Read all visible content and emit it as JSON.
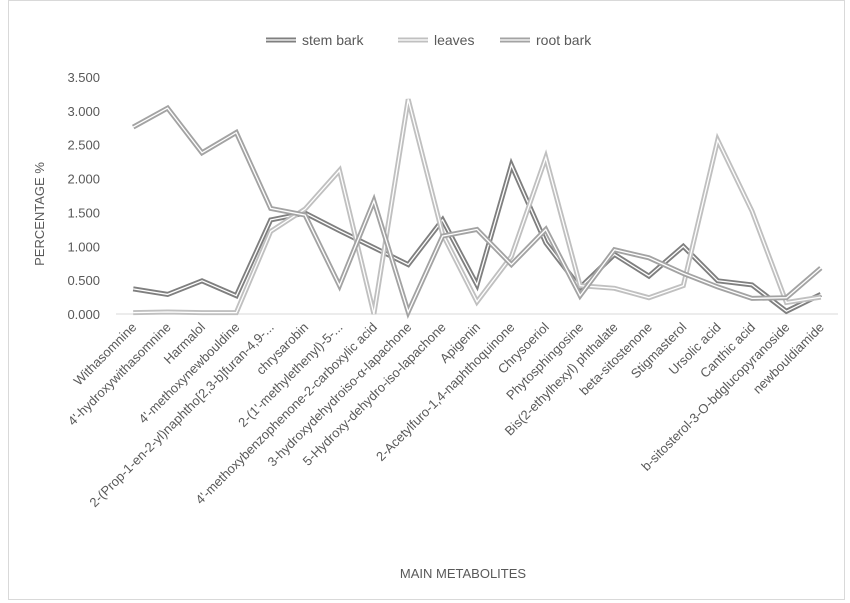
{
  "chart_data": {
    "type": "line",
    "xlabel": "MAIN  METABOLITES",
    "ylabel": "PERCENTAGE %",
    "ylim": [
      0,
      3.5
    ],
    "ytick_step": 0.5,
    "ytick_labels": [
      "0.000",
      "0.500",
      "1.000",
      "1.500",
      "2.000",
      "2.500",
      "3.000",
      "3.500"
    ],
    "grid": false,
    "legend_position": "top",
    "categories": [
      "Withasomnine",
      "4'-hydroxywithasomnine",
      "Harmalol",
      "4'-methoxynewbouldine",
      "2-(Prop-1-en-2-yl)naphtho[2,3-b]furan-4,9-...",
      "chrysarobin",
      "2-(1'-methylethenyl)-5-...",
      "4'-methoxybenzophenone-2-carboxylic acid",
      "3-hydroxydehydroiso-α-lapachone",
      "5-Hydroxy-dehydro-iso-lapachone",
      "Apigenin",
      "2-Acetylfuro-1,4-naphthoquinone",
      "Chrysoeriol",
      "Phytosphingosine",
      "Bis(2-ethylhexyl) phthalate",
      "beta-sitostenone",
      "Stigmasterol",
      "Ursolic acid",
      "Canthic acid",
      "b-sitosterol-3-O-bdglucopyranoside",
      "newbouldiamide"
    ],
    "series": [
      {
        "name": "stem bark",
        "color": "#7f7f7f",
        "values": [
          0.37,
          0.29,
          0.49,
          0.27,
          1.39,
          1.49,
          1.23,
          0.98,
          0.73,
          1.39,
          0.43,
          2.2,
          1.05,
          0.39,
          0.88,
          0.56,
          1.0,
          0.49,
          0.43,
          0.04,
          0.29
        ]
      },
      {
        "name": "leaves",
        "color": "#c0c0c0",
        "values": [
          0.02,
          0.03,
          0.02,
          0.02,
          1.22,
          1.55,
          2.12,
          0.0,
          3.17,
          1.18,
          0.18,
          0.85,
          2.31,
          0.42,
          0.38,
          0.24,
          0.42,
          2.57,
          1.52,
          0.17,
          0.25
        ]
      },
      {
        "name": "root bark",
        "color": "#a3a3a3",
        "values": [
          2.76,
          3.04,
          2.38,
          2.68,
          1.56,
          1.46,
          0.42,
          1.67,
          0.03,
          1.15,
          1.25,
          0.73,
          1.25,
          0.27,
          0.95,
          0.83,
          0.6,
          0.4,
          0.23,
          0.24,
          0.68
        ]
      }
    ]
  }
}
